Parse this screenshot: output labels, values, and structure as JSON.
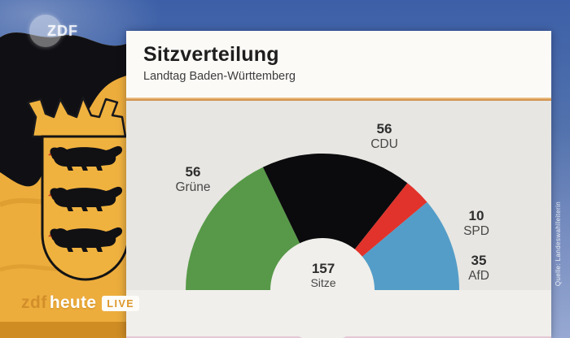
{
  "broadcast": {
    "watermark": "ZDF",
    "program": {
      "zdf": "zdf",
      "heute": "heute",
      "live": "LIVE"
    },
    "source": "Quelle: Landeswahlleiterin"
  },
  "card": {
    "title": "Sitzverteilung",
    "subtitle": "Landtag Baden-Württemberg",
    "accent_color": "#d99a52"
  },
  "chart_data": {
    "type": "half-donut",
    "title": "Sitzverteilung",
    "subtitle": "Landtag Baden-Württemberg",
    "total": 157,
    "center_label": {
      "value": "157",
      "unit": "Sitze"
    },
    "series": [
      {
        "name": "Grüne",
        "value": 56,
        "color": "#579948"
      },
      {
        "name": "CDU",
        "value": 56,
        "color": "#0b0b0d"
      },
      {
        "name": "SPD",
        "value": 10,
        "color": "#e1332b"
      },
      {
        "name": "AfD",
        "value": 35,
        "color": "#549dc8"
      }
    ],
    "layout": {
      "start_angle_deg": 180,
      "end_angle_deg": 0,
      "hole_label_position": "center-bottom",
      "legend": "none"
    }
  }
}
